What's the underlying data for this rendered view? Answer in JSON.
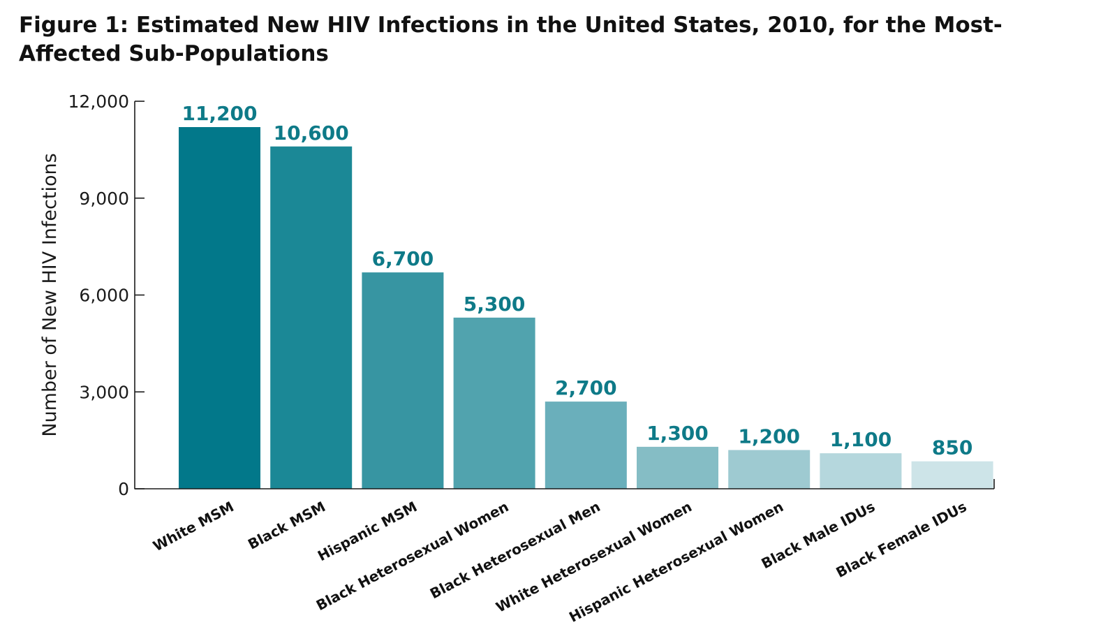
{
  "figure": {
    "title": "Figure 1: Estimated New HIV Infections in the United States, 2010, for the Most-Affected Sub-Populations"
  },
  "chart_data": {
    "type": "bar",
    "title": "Figure 1: Estimated New HIV Infections in the United States, 2010, for the Most-Affected Sub-Populations",
    "xlabel": "",
    "ylabel": "Number of New HIV Infections",
    "ylim": [
      0,
      12000
    ],
    "yticks": [
      0,
      3000,
      6000,
      9000,
      12000
    ],
    "ytick_labels": [
      "0",
      "3,000",
      "6,000",
      "9,000",
      "12,000"
    ],
    "grid": false,
    "legend": "none",
    "categories": [
      "White MSM",
      "Black MSM",
      "Hispanic MSM",
      "Black Heterosexual Women",
      "Black Heterosexual Men",
      "White Heterosexual Women",
      "Hispanic Heterosexual Women",
      "Black Male IDUs",
      "Black Female IDUs"
    ],
    "values": [
      11200,
      10600,
      6700,
      5300,
      2700,
      1300,
      1200,
      1100,
      850
    ],
    "value_labels": [
      "11,200",
      "10,600",
      "6,700",
      "5,300",
      "2,700",
      "1,300",
      "1,200",
      "1,100",
      "850"
    ],
    "colors": [
      "#02788a",
      "#1b8896",
      "#3795a2",
      "#51a3ae",
      "#6aafbb",
      "#85bdc5",
      "#9ecad1",
      "#b5d7dd",
      "#cde4e8"
    ]
  }
}
